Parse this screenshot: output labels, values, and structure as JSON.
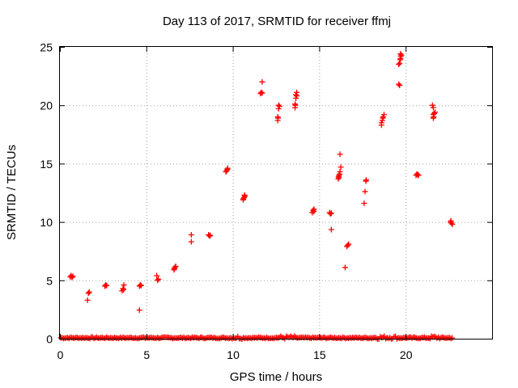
{
  "chart_data": {
    "type": "scatter",
    "title": "Day 113 of 2017, SRMTID for receiver ffmj",
    "xlabel": "GPS time / hours",
    "ylabel": "SRMTID / TECUs",
    "xlim": [
      0,
      25
    ],
    "ylim": [
      0,
      25
    ],
    "xticks": [
      0,
      5,
      10,
      15,
      20
    ],
    "yticks": [
      0,
      5,
      10,
      15,
      20,
      25
    ],
    "grid": true,
    "marker": "+",
    "color": "#ff0000",
    "baseline": {
      "x_start": 0.05,
      "x_end": 22.75,
      "x_step": 0.08,
      "y_mean": 0.05,
      "y_spread": 0.12,
      "highlights": [
        [
          9.9,
          10.6
        ],
        [
          12.5,
          13.6
        ],
        [
          18.0,
          19.5
        ],
        [
          21.1,
          22.0
        ]
      ]
    },
    "points": [
      [
        0.6,
        5.3
      ],
      [
        0.65,
        5.4
      ],
      [
        0.7,
        5.25
      ],
      [
        0.75,
        5.35
      ],
      [
        1.6,
        3.3
      ],
      [
        1.65,
        3.9
      ],
      [
        1.7,
        4.0
      ],
      [
        2.6,
        4.5
      ],
      [
        2.65,
        4.6
      ],
      [
        2.7,
        4.55
      ],
      [
        3.6,
        4.1
      ],
      [
        3.65,
        4.3
      ],
      [
        3.7,
        4.6
      ],
      [
        3.68,
        4.2
      ],
      [
        4.6,
        2.45
      ],
      [
        4.6,
        4.5
      ],
      [
        4.65,
        4.6
      ],
      [
        4.7,
        4.55
      ],
      [
        5.6,
        5.4
      ],
      [
        5.65,
        5.0
      ],
      [
        5.7,
        5.1
      ],
      [
        6.6,
        5.9
      ],
      [
        6.65,
        6.1
      ],
      [
        6.7,
        6.2
      ],
      [
        6.62,
        6.0
      ],
      [
        7.6,
        8.9
      ],
      [
        7.6,
        8.3
      ],
      [
        8.6,
        8.9
      ],
      [
        8.65,
        8.8
      ],
      [
        8.7,
        8.85
      ],
      [
        9.6,
        14.3
      ],
      [
        9.65,
        14.4
      ],
      [
        9.7,
        14.6
      ],
      [
        9.68,
        14.5
      ],
      [
        10.6,
        11.9
      ],
      [
        10.65,
        12.1
      ],
      [
        10.7,
        12.2
      ],
      [
        10.68,
        12.3
      ],
      [
        10.62,
        12.0
      ],
      [
        11.6,
        21.0
      ],
      [
        11.65,
        21.1
      ],
      [
        11.7,
        21.05
      ],
      [
        11.7,
        22.0
      ],
      [
        12.6,
        18.7
      ],
      [
        12.6,
        19.0
      ],
      [
        12.65,
        19.7
      ],
      [
        12.7,
        19.9
      ],
      [
        12.65,
        20.0
      ],
      [
        12.62,
        18.9
      ],
      [
        13.6,
        19.8
      ],
      [
        13.6,
        20.1
      ],
      [
        13.65,
        20.6
      ],
      [
        13.7,
        20.8
      ],
      [
        13.7,
        21.1
      ],
      [
        13.65,
        20.9
      ],
      [
        13.62,
        20.0
      ],
      [
        14.6,
        10.8
      ],
      [
        14.65,
        11.0
      ],
      [
        14.7,
        11.1
      ],
      [
        14.68,
        10.9
      ],
      [
        15.6,
        10.8
      ],
      [
        15.65,
        10.7
      ],
      [
        15.7,
        10.75
      ],
      [
        15.7,
        9.35
      ],
      [
        16.1,
        13.7
      ],
      [
        16.12,
        13.9
      ],
      [
        16.15,
        14.0
      ],
      [
        16.18,
        14.1
      ],
      [
        16.2,
        14.3
      ],
      [
        16.25,
        14.7
      ],
      [
        16.2,
        15.8
      ],
      [
        16.14,
        13.8
      ],
      [
        16.6,
        7.9
      ],
      [
        16.65,
        8.0
      ],
      [
        16.7,
        8.1
      ],
      [
        16.5,
        6.1
      ],
      [
        17.6,
        11.6
      ],
      [
        17.65,
        12.6
      ],
      [
        17.7,
        13.5
      ],
      [
        17.72,
        13.6
      ],
      [
        18.6,
        18.3
      ],
      [
        18.6,
        18.5
      ],
      [
        18.65,
        18.7
      ],
      [
        18.7,
        19.0
      ],
      [
        18.75,
        19.2
      ],
      [
        18.68,
        18.9
      ],
      [
        19.6,
        21.8
      ],
      [
        19.65,
        21.7
      ],
      [
        19.6,
        23.5
      ],
      [
        19.65,
        23.6
      ],
      [
        19.7,
        24.0
      ],
      [
        19.72,
        24.2
      ],
      [
        19.7,
        24.4
      ],
      [
        19.75,
        24.3
      ],
      [
        19.68,
        23.9
      ],
      [
        20.6,
        14.0
      ],
      [
        20.65,
        14.1
      ],
      [
        20.7,
        14.05
      ],
      [
        20.75,
        14.0
      ],
      [
        21.6,
        18.9
      ],
      [
        21.6,
        19.2
      ],
      [
        21.65,
        19.3
      ],
      [
        21.6,
        19.8
      ],
      [
        21.55,
        20.0
      ],
      [
        21.7,
        19.4
      ],
      [
        21.62,
        19.0
      ],
      [
        22.6,
        10.0
      ],
      [
        22.65,
        9.9
      ],
      [
        22.7,
        9.8
      ],
      [
        22.62,
        10.1
      ]
    ]
  }
}
